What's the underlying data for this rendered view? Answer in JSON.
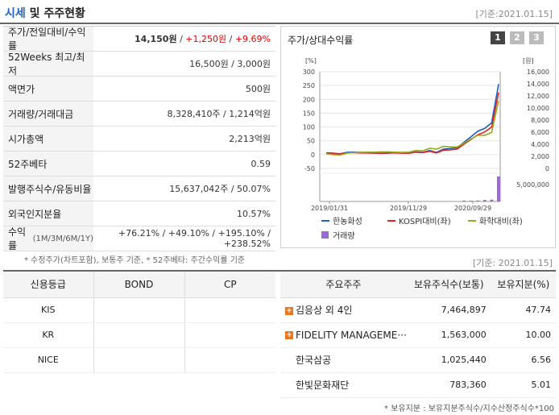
{
  "header": {
    "title_part1": "시세",
    "title_part2": "및 주주현황",
    "base_date": "[기준:2021.01.15]"
  },
  "summary": {
    "rows": [
      {
        "label": "주가/전일대비/수익률",
        "price": "14,150원",
        "sep1": " / ",
        "change": "+1,250원",
        "sep2": " / ",
        "rate": "+9.69%"
      },
      {
        "label": "52Weeks 최고/최저",
        "value": "16,500원 / 3,000원"
      },
      {
        "label": "액면가",
        "value": "500원"
      },
      {
        "label": "거래량/거래대금",
        "value": "8,328,410주 / 1,214억원"
      },
      {
        "label": "시가총액",
        "value": "2,213억원"
      },
      {
        "label": "52주베타",
        "value": "0.59"
      },
      {
        "label": "발행주식수/유동비율",
        "value": "15,637,042주 / 50.07%"
      },
      {
        "label": "외국인지분율",
        "value": "10.57%"
      },
      {
        "label": "수익률",
        "label_sub": "(1M/3M/6M/1Y)",
        "value": "+76.21% / +49.10% / +195.10% / +238.52%"
      }
    ],
    "footnote": "* 수정주가(차트포함), 보통주 기준, * 52주베타: 주간수익률 기준"
  },
  "chart_panel": {
    "title": "주가/상대수익률",
    "tabs": [
      "1",
      "2",
      "3"
    ],
    "active_tab": "1"
  },
  "chart_data": {
    "type": "line",
    "ylabel_left": "[%]",
    "ylabel_right": "[원]",
    "y_left_ticks": [
      "300",
      "250",
      "200",
      "150",
      "100",
      "50",
      "0",
      "-50"
    ],
    "y_right_ticks": [
      "16,000",
      "14,000",
      "12,000",
      "10,000",
      "8,000",
      "6,000",
      "4,000",
      "2,000",
      "0"
    ],
    "volume_tick": "5,000,000",
    "x_ticks": [
      "2019/01/31",
      "2019/11/29",
      "2020/09/29"
    ],
    "ylim_left": [
      -50,
      300
    ],
    "series": [
      {
        "name": "한농화성",
        "color": "#1f5fc8",
        "values": [
          7,
          5,
          3,
          8,
          9,
          8,
          6,
          5,
          4,
          5,
          7,
          6,
          5,
          10,
          8,
          15,
          8,
          20,
          22,
          25,
          45,
          65,
          85,
          95,
          115,
          255
        ]
      },
      {
        "name": "KOSPI대비(좌)",
        "color": "#e52020",
        "values": [
          5,
          3,
          2,
          6,
          7,
          6,
          6,
          6,
          5,
          6,
          6,
          5,
          5,
          9,
          7,
          12,
          6,
          16,
          17,
          20,
          38,
          55,
          72,
          82,
          100,
          225
        ]
      },
      {
        "name": "화학대비(좌)",
        "color": "#8fb021",
        "values": [
          3,
          0,
          -2,
          5,
          7,
          8,
          9,
          9,
          10,
          10,
          9,
          8,
          9,
          15,
          14,
          23,
          20,
          30,
          28,
          28,
          42,
          57,
          70,
          70,
          80,
          195
        ]
      }
    ],
    "volume": {
      "name": "거래량",
      "color": "#9c6ad6",
      "values": [
        0,
        0,
        0,
        0,
        0,
        0,
        0,
        0,
        0,
        0,
        0,
        0,
        0,
        0,
        0,
        0,
        0,
        0,
        0,
        0,
        0.3,
        0.25,
        0.3,
        0.5,
        0.6,
        8.3
      ]
    }
  },
  "base_date2": "[기준: 2021.01.15]",
  "credit": {
    "headers": [
      "신용등급",
      "BOND",
      "CP"
    ],
    "rows": [
      [
        "KIS",
        "",
        ""
      ],
      [
        "KR",
        "",
        ""
      ],
      [
        "NICE",
        "",
        ""
      ]
    ]
  },
  "holders": {
    "headers": [
      "주요주주",
      "보유주식수(보통)",
      "보유지분(%)"
    ],
    "rows": [
      {
        "expand": true,
        "name": "김응상 외 4인",
        "shares": "7,464,897",
        "pct": "47.74"
      },
      {
        "expand": true,
        "name": "FIDELITY MANAGEME···",
        "shares": "1,563,000",
        "pct": "10.00"
      },
      {
        "expand": false,
        "name": "한국삼공",
        "shares": "1,025,440",
        "pct": "6.56"
      },
      {
        "expand": false,
        "name": "한빛문화재단",
        "shares": "783,360",
        "pct": "5.01"
      }
    ],
    "note": "* 보유지분 : 보유지분주식수/지수산정주식수*100"
  }
}
